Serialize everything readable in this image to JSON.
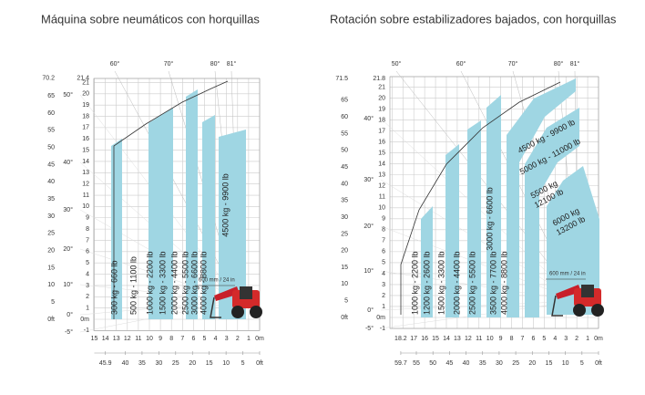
{
  "panels": [
    {
      "title": "Máquina sobre neumáticos con horquillas",
      "angles_top": [
        "60°",
        "70°",
        "80°",
        "81°"
      ],
      "height_ft": [
        "70.2",
        "65",
        "60",
        "55",
        "50",
        "45",
        "40",
        "35",
        "30",
        "25",
        "20",
        "15",
        "10",
        "5",
        "0ft"
      ],
      "angles_left": [
        "50°",
        "40°",
        "30°",
        "20°",
        "10°",
        "0°",
        "-5°"
      ],
      "height_m": [
        "21.4",
        "21",
        "20",
        "19",
        "18",
        "17",
        "16",
        "15",
        "14",
        "13",
        "12",
        "11",
        "10",
        "9",
        "8",
        "7",
        "6",
        "5",
        "4",
        "3",
        "2",
        "1",
        "0m",
        "-1"
      ],
      "reach_m": [
        "15",
        "14",
        "13",
        "12",
        "11",
        "10",
        "9",
        "8",
        "7",
        "6",
        "5",
        "4",
        "3",
        "2",
        "1",
        "0m"
      ],
      "reach_ft": [
        "45.9",
        "40",
        "35",
        "30",
        "25",
        "20",
        "15",
        "10",
        "5",
        "0ft"
      ],
      "loads": [
        "300 kg - 660 lb",
        "500 kg - 1100 lb",
        "1000 kg - 2200 lb",
        "1500 kg - 3300 lb",
        "2000 kg - 4400 lb",
        "2500 kg - 5500 lb",
        "3000 kg - 6600 lb",
        "4000 kg - 8800 lb",
        "4500 kg - 9900 lb"
      ],
      "extension": "600 mm / 24 in"
    },
    {
      "title": "Rotación sobre estabilizadores bajados, con horquillas",
      "angles_top": [
        "50°",
        "60°",
        "70°",
        "80°",
        "81°"
      ],
      "height_ft": [
        "71.5",
        "65",
        "60",
        "55",
        "50",
        "45",
        "40",
        "35",
        "30",
        "25",
        "20",
        "15",
        "10",
        "5",
        "0ft"
      ],
      "angles_left": [
        "40°",
        "30°",
        "20°",
        "10°",
        "0°",
        "-5°"
      ],
      "height_m": [
        "21.8",
        "21",
        "20",
        "19",
        "18",
        "17",
        "16",
        "15",
        "14",
        "13",
        "12",
        "11",
        "10",
        "9",
        "8",
        "7",
        "6",
        "5",
        "4",
        "3",
        "2",
        "1",
        "0m",
        "-1"
      ],
      "reach_m": [
        "18.2",
        "17",
        "16",
        "15",
        "14",
        "13",
        "12",
        "11",
        "10",
        "9",
        "8",
        "7",
        "6",
        "5",
        "4",
        "3",
        "2",
        "1",
        "0m"
      ],
      "reach_ft": [
        "59.7",
        "55",
        "50",
        "45",
        "40",
        "35",
        "30",
        "25",
        "20",
        "15",
        "10",
        "5",
        "0ft"
      ],
      "loads": [
        "1000 kg - 2200 lb",
        "1200 kg - 2600 lb",
        "1500 kg - 3300 lb",
        "2000 kg - 4400 lb",
        "2500 kg - 5500 lb",
        "3000 kg - 6600 lb",
        "3500 kg - 7700 lb",
        "4000 kg - 8800 lb",
        "4500 kg - 9900 lb",
        "5000 kg - 11000 lb",
        [
          "5500 kg",
          "12100 lb"
        ],
        [
          "6000 kg",
          "13200 lb"
        ]
      ],
      "extension": "600 mm / 24 in"
    }
  ]
}
